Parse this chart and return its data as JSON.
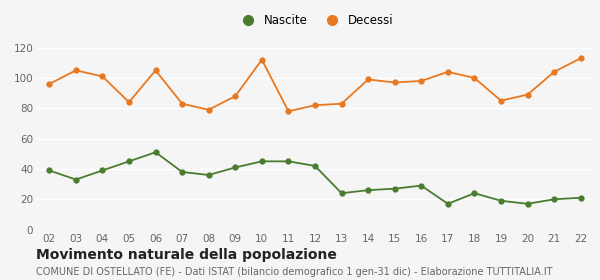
{
  "years": [
    "02",
    "03",
    "04",
    "05",
    "06",
    "07",
    "08",
    "09",
    "10",
    "11",
    "12",
    "13",
    "14",
    "15",
    "16",
    "17",
    "18",
    "19",
    "20",
    "21",
    "22"
  ],
  "nascite": [
    39,
    33,
    39,
    45,
    51,
    38,
    36,
    41,
    45,
    45,
    42,
    24,
    26,
    27,
    29,
    17,
    24,
    19,
    17,
    20,
    21
  ],
  "decessi": [
    96,
    105,
    101,
    84,
    105,
    83,
    79,
    88,
    112,
    78,
    82,
    83,
    99,
    97,
    98,
    104,
    100,
    85,
    89,
    104,
    113
  ],
  "nascite_color": "#4a7c2f",
  "decessi_color": "#e87820",
  "background_color": "#f5f5f5",
  "grid_color": "#ffffff",
  "ylim": [
    0,
    120
  ],
  "yticks": [
    0,
    20,
    40,
    60,
    80,
    100,
    120
  ],
  "title": "Movimento naturale della popolazione",
  "subtitle": "COMUNE DI OSTELLATO (FE) - Dati ISTAT (bilancio demografico 1 gen-31 dic) - Elaborazione TUTTITALIA.IT",
  "legend_nascite": "Nascite",
  "legend_decessi": "Decessi",
  "title_fontsize": 10,
  "subtitle_fontsize": 7,
  "tick_fontsize": 7.5,
  "legend_fontsize": 8.5
}
